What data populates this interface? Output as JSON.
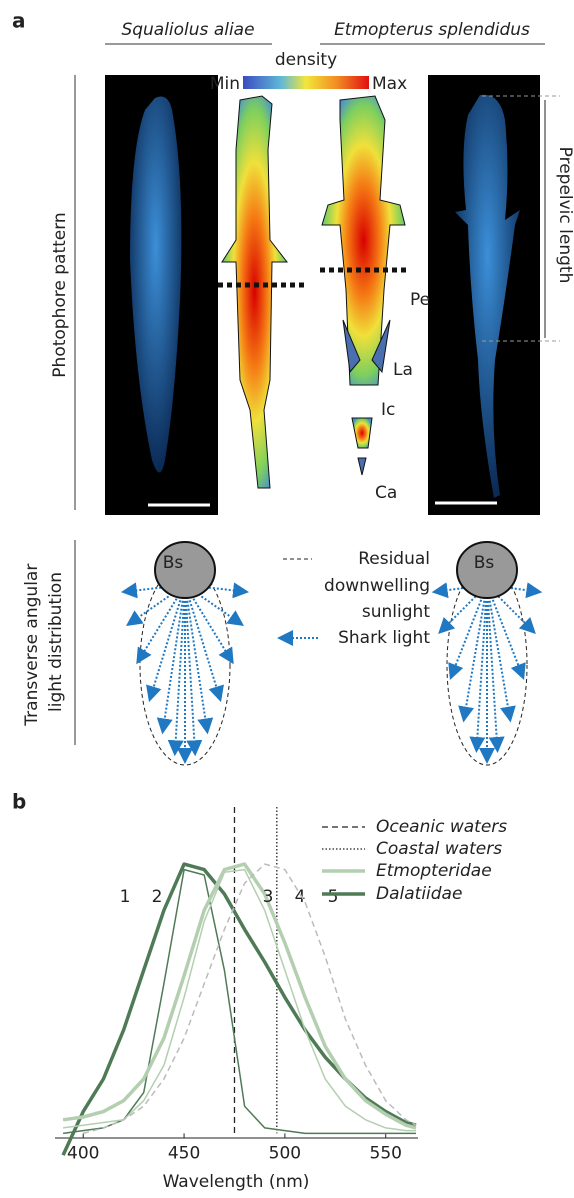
{
  "panel_a": {
    "label": "a",
    "species": [
      "Squaliolus aliae",
      "Etmopterus splendidus"
    ],
    "density_label": "density",
    "density_min": "Min",
    "density_max": "Max",
    "row_labels": {
      "photophore": "Photophore pattern",
      "transverse": [
        "Transverse angular",
        "light distribution"
      ]
    },
    "annotations": {
      "pe": "Pe",
      "la": "La",
      "ic": "Ic",
      "ca": "Ca",
      "prepelvic": "Prepelvic length",
      "bs_left": "Bs",
      "bs_right": "Bs"
    },
    "legend": {
      "residual": [
        "Residual",
        "downwelling",
        "sunlight"
      ],
      "shark": "Shark light"
    }
  },
  "chart_data": {
    "type": "line",
    "label": "b",
    "xlabel": "Wavelength (nm)",
    "xlim": [
      386,
      566
    ],
    "ylim": [
      -0.12,
      1.2
    ],
    "xticks": [
      400,
      450,
      500,
      550
    ],
    "x": [
      390,
      400,
      410,
      420,
      430,
      440,
      450,
      460,
      470,
      480,
      490,
      500,
      510,
      520,
      530,
      540,
      550,
      560,
      565
    ],
    "vlines": [
      {
        "name": "Oceanic waters",
        "x": 475,
        "style": "dashed"
      },
      {
        "name": "Coastal waters",
        "x": 496,
        "style": "dotted"
      }
    ],
    "series": [
      {
        "label": "1",
        "name": "Dalatiidae",
        "color": "#4f7a56",
        "width": 3.5,
        "style": "solid",
        "values": [
          -0.08,
          0.08,
          0.2,
          0.38,
          0.6,
          0.82,
          0.99,
          0.97,
          0.88,
          0.75,
          0.63,
          0.5,
          0.38,
          0.28,
          0.2,
          0.13,
          0.08,
          0.04,
          0.03
        ]
      },
      {
        "label": "2",
        "color": "#4f7a56",
        "width": 1.5,
        "style": "solid",
        "values": [
          0,
          0.01,
          0.02,
          0.05,
          0.15,
          0.55,
          0.97,
          0.95,
          0.6,
          0.1,
          0.02,
          0.01,
          0,
          0,
          0,
          0,
          0,
          0,
          0
        ]
      },
      {
        "label": "3",
        "name": "Etmopteridae",
        "color": "#b4cfb0",
        "width": 3.5,
        "style": "solid",
        "values": [
          0.05,
          0.06,
          0.08,
          0.12,
          0.2,
          0.35,
          0.58,
          0.82,
          0.97,
          0.99,
          0.88,
          0.7,
          0.5,
          0.32,
          0.2,
          0.12,
          0.07,
          0.03,
          0.02
        ]
      },
      {
        "label": "4",
        "color": "#b4cfb0",
        "width": 1.5,
        "style": "solid",
        "values": [
          0.02,
          0.03,
          0.04,
          0.05,
          0.12,
          0.25,
          0.5,
          0.78,
          0.96,
          0.97,
          0.82,
          0.6,
          0.38,
          0.2,
          0.1,
          0.05,
          0.02,
          0.01,
          0.01
        ]
      },
      {
        "label": "5",
        "color": "#bbbbbb",
        "width": 1.5,
        "style": "dashed",
        "values": [
          null,
          0,
          0.02,
          0.05,
          0.1,
          0.2,
          0.35,
          0.55,
          0.75,
          0.92,
          0.99,
          0.97,
          0.85,
          0.65,
          0.42,
          0.25,
          0.12,
          0.05,
          0.03
        ]
      }
    ]
  }
}
